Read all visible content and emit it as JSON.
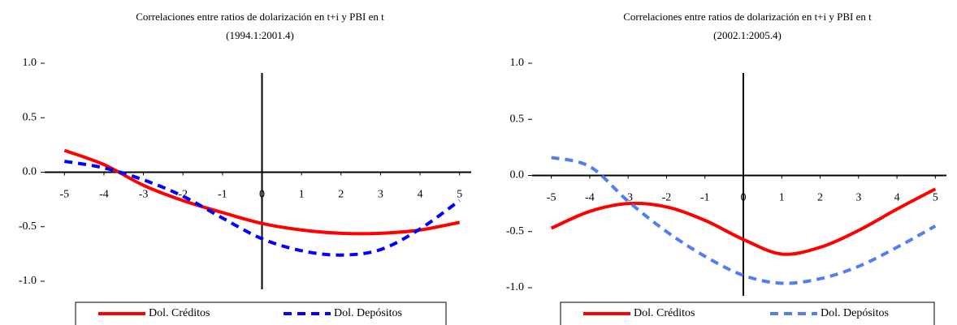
{
  "chart_data": [
    {
      "type": "line",
      "title": "Correlaciones entre ratios de dolarización en t+i y  PBI en t",
      "subtitle": "(1994.1:2001.4)",
      "x": [
        -5,
        -4,
        -3,
        -2,
        -1,
        0,
        1,
        2,
        3,
        4,
        5
      ],
      "xlim": [
        -5.5,
        5.5
      ],
      "xticks": [
        -5,
        -4,
        -3,
        -2,
        -1,
        0,
        1,
        2,
        3,
        4,
        5
      ],
      "ylim": [
        -1,
        1
      ],
      "yticks": [
        {
          "value": -1,
          "label": "-1.0"
        },
        {
          "value": -0.5,
          "label": "-0.5"
        },
        {
          "value": 0,
          "label": "0.0"
        },
        {
          "value": 0.5,
          "label": "0.5"
        },
        {
          "value": 1,
          "label": "1.0"
        }
      ],
      "series": [
        {
          "name": "Dol. Créditos",
          "color": "#ff0000",
          "dashed": false,
          "values": [
            0.2,
            0.07,
            -0.12,
            -0.26,
            -0.37,
            -0.47,
            -0.53,
            -0.56,
            -0.56,
            -0.53,
            -0.46
          ]
        },
        {
          "name": "Dol. Depósitos",
          "color": "#0000ff",
          "dashed": true,
          "values": [
            0.1,
            0.04,
            -0.07,
            -0.22,
            -0.42,
            -0.61,
            -0.72,
            -0.76,
            -0.71,
            -0.52,
            -0.26
          ]
        }
      ]
    },
    {
      "type": "line",
      "title": "Correlaciones entre ratios de dolarización en t+i y  PBI en t",
      "subtitle": "(2002.1:2005.4)",
      "x": [
        -5,
        -4,
        -3,
        -2,
        -1,
        0,
        1,
        2,
        3,
        4,
        5
      ],
      "xlim": [
        -5.5,
        5.5
      ],
      "xticks": [
        -5,
        -4,
        -3,
        -2,
        -1,
        0,
        1,
        2,
        3,
        4,
        5
      ],
      "ylim": [
        -1,
        1
      ],
      "yticks": [
        {
          "value": -1,
          "label": "-1.0"
        },
        {
          "value": -0.5,
          "label": "-0.5"
        },
        {
          "value": 0,
          "label": "0.0"
        },
        {
          "value": 0.5,
          "label": "0.5"
        },
        {
          "value": 1,
          "label": "1.0"
        }
      ],
      "series": [
        {
          "name": "Dol. Créditos",
          "color": "#ff0000",
          "dashed": false,
          "values": [
            -0.47,
            -0.32,
            -0.25,
            -0.28,
            -0.4,
            -0.57,
            -0.7,
            -0.64,
            -0.49,
            -0.3,
            -0.12
          ]
        },
        {
          "name": "Dol. Depósitos",
          "color": "#4f7ff2",
          "dashed": true,
          "values": [
            0.16,
            0.08,
            -0.23,
            -0.5,
            -0.72,
            -0.89,
            -0.96,
            -0.92,
            -0.81,
            -0.64,
            -0.45
          ]
        }
      ]
    }
  ]
}
